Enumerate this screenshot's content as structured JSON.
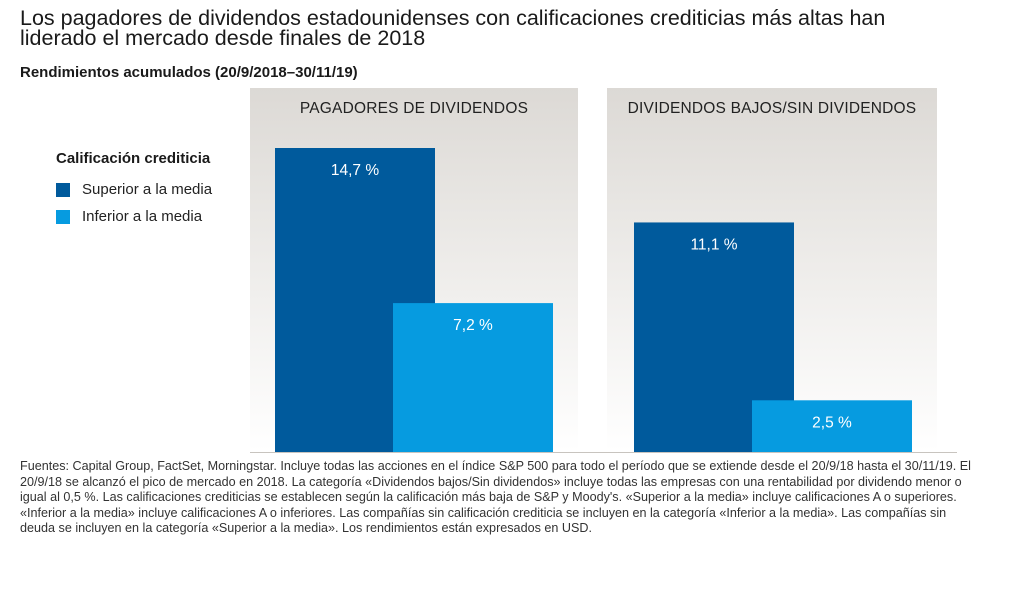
{
  "title": "Los pagadores de dividendos estadounidenses con calificaciones crediticias más altas han liderado el mercado desde finales de 2018",
  "subtitle": "Rendimientos acumulados (20/9/2018–30/11/19)",
  "legend": {
    "title": "Calificación crediticia",
    "items": [
      {
        "label": "Superior a la media",
        "color": "#005a9c"
      },
      {
        "label": "Inferior a la media",
        "color": "#069be0"
      }
    ]
  },
  "chart_data": {
    "type": "bar",
    "title": "Rendimientos acumulados (20/9/2018–30/11/19)",
    "categories": [
      "PAGADORES DE DIVIDENDOS",
      "DIVIDENDOS BAJOS/SIN DIVIDENDOS"
    ],
    "series": [
      {
        "name": "Superior a la media",
        "values": [
          14.7,
          11.1
        ],
        "labels": [
          "14,7 %",
          "11,1 %"
        ],
        "color": "#005a9c"
      },
      {
        "name": "Inferior a la media",
        "values": [
          7.2,
          2.5
        ],
        "labels": [
          "7,2 %",
          "2,5 %"
        ],
        "color": "#069be0"
      }
    ],
    "ylim": [
      0,
      14.7
    ],
    "xlabel": "",
    "ylabel": ""
  },
  "footnote": "Fuentes: Capital Group, FactSet, Morningstar. Incluye todas las acciones en el índice S&P 500 para todo el período que se extiende desde el 20/9/18 hasta el 30/11/19. El 20/9/18 se alcanzó el pico de mercado en 2018. La categoría «Dividendos bajos/Sin dividendos» incluye todas las empresas con una rentabilidad por dividendo menor o igual al 0,5 %. Las calificaciones crediticias se establecen según la calificación más baja de S&P y Moody's. «Superior a la media» incluye calificaciones A o superiores. «Inferior a la media» incluye calificaciones A o inferiores. Las compañías sin calificación crediticia se incluyen en la categoría «Inferior a la media». Las compañías sin deuda se incluyen en la categoría «Superior a la media». Los rendimientos están expresados en USD."
}
